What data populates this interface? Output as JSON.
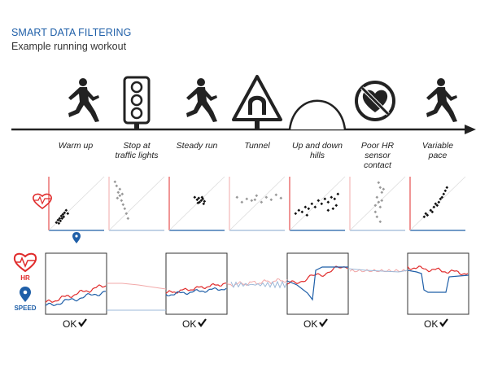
{
  "header": {
    "title": "SMART DATA FILTERING",
    "subtitle": "Example running workout"
  },
  "timeline": {
    "phases": [
      {
        "label_lines": [
          "Warm up"
        ],
        "icon": "runner-icon"
      },
      {
        "label_lines": [
          "Stop at",
          "traffic lights"
        ],
        "icon": "traffic-light-icon"
      },
      {
        "label_lines": [
          "Steady run"
        ],
        "icon": "runner-icon"
      },
      {
        "label_lines": [
          "Tunnel"
        ],
        "icon": "tunnel-sign-icon"
      },
      {
        "label_lines": [
          "Up and down",
          "hills"
        ],
        "icon": "hill-icon"
      },
      {
        "label_lines": [
          "Poor HR",
          "sensor",
          "contact"
        ],
        "icon": "no-heart-icon"
      },
      {
        "label_lines": [
          "Variable",
          "pace"
        ],
        "icon": "runner-icon"
      }
    ]
  },
  "legend": {
    "hr_label": "HR",
    "speed_label": "SPEED",
    "hr_color": "#e02b2b",
    "speed_color": "#1f5fa8"
  },
  "ok_blocks": [
    {
      "label": "OK"
    },
    {
      "label": "OK"
    },
    {
      "label": "OK"
    },
    {
      "label": "OK"
    }
  ],
  "colors": {
    "accent_blue": "#1f5fa8",
    "accent_red": "#e02b2b",
    "faded_red": "#f2a9a9",
    "faded_blue": "#9cb8d8",
    "good_dot": "#111111",
    "bad_dot": "#999999"
  }
}
